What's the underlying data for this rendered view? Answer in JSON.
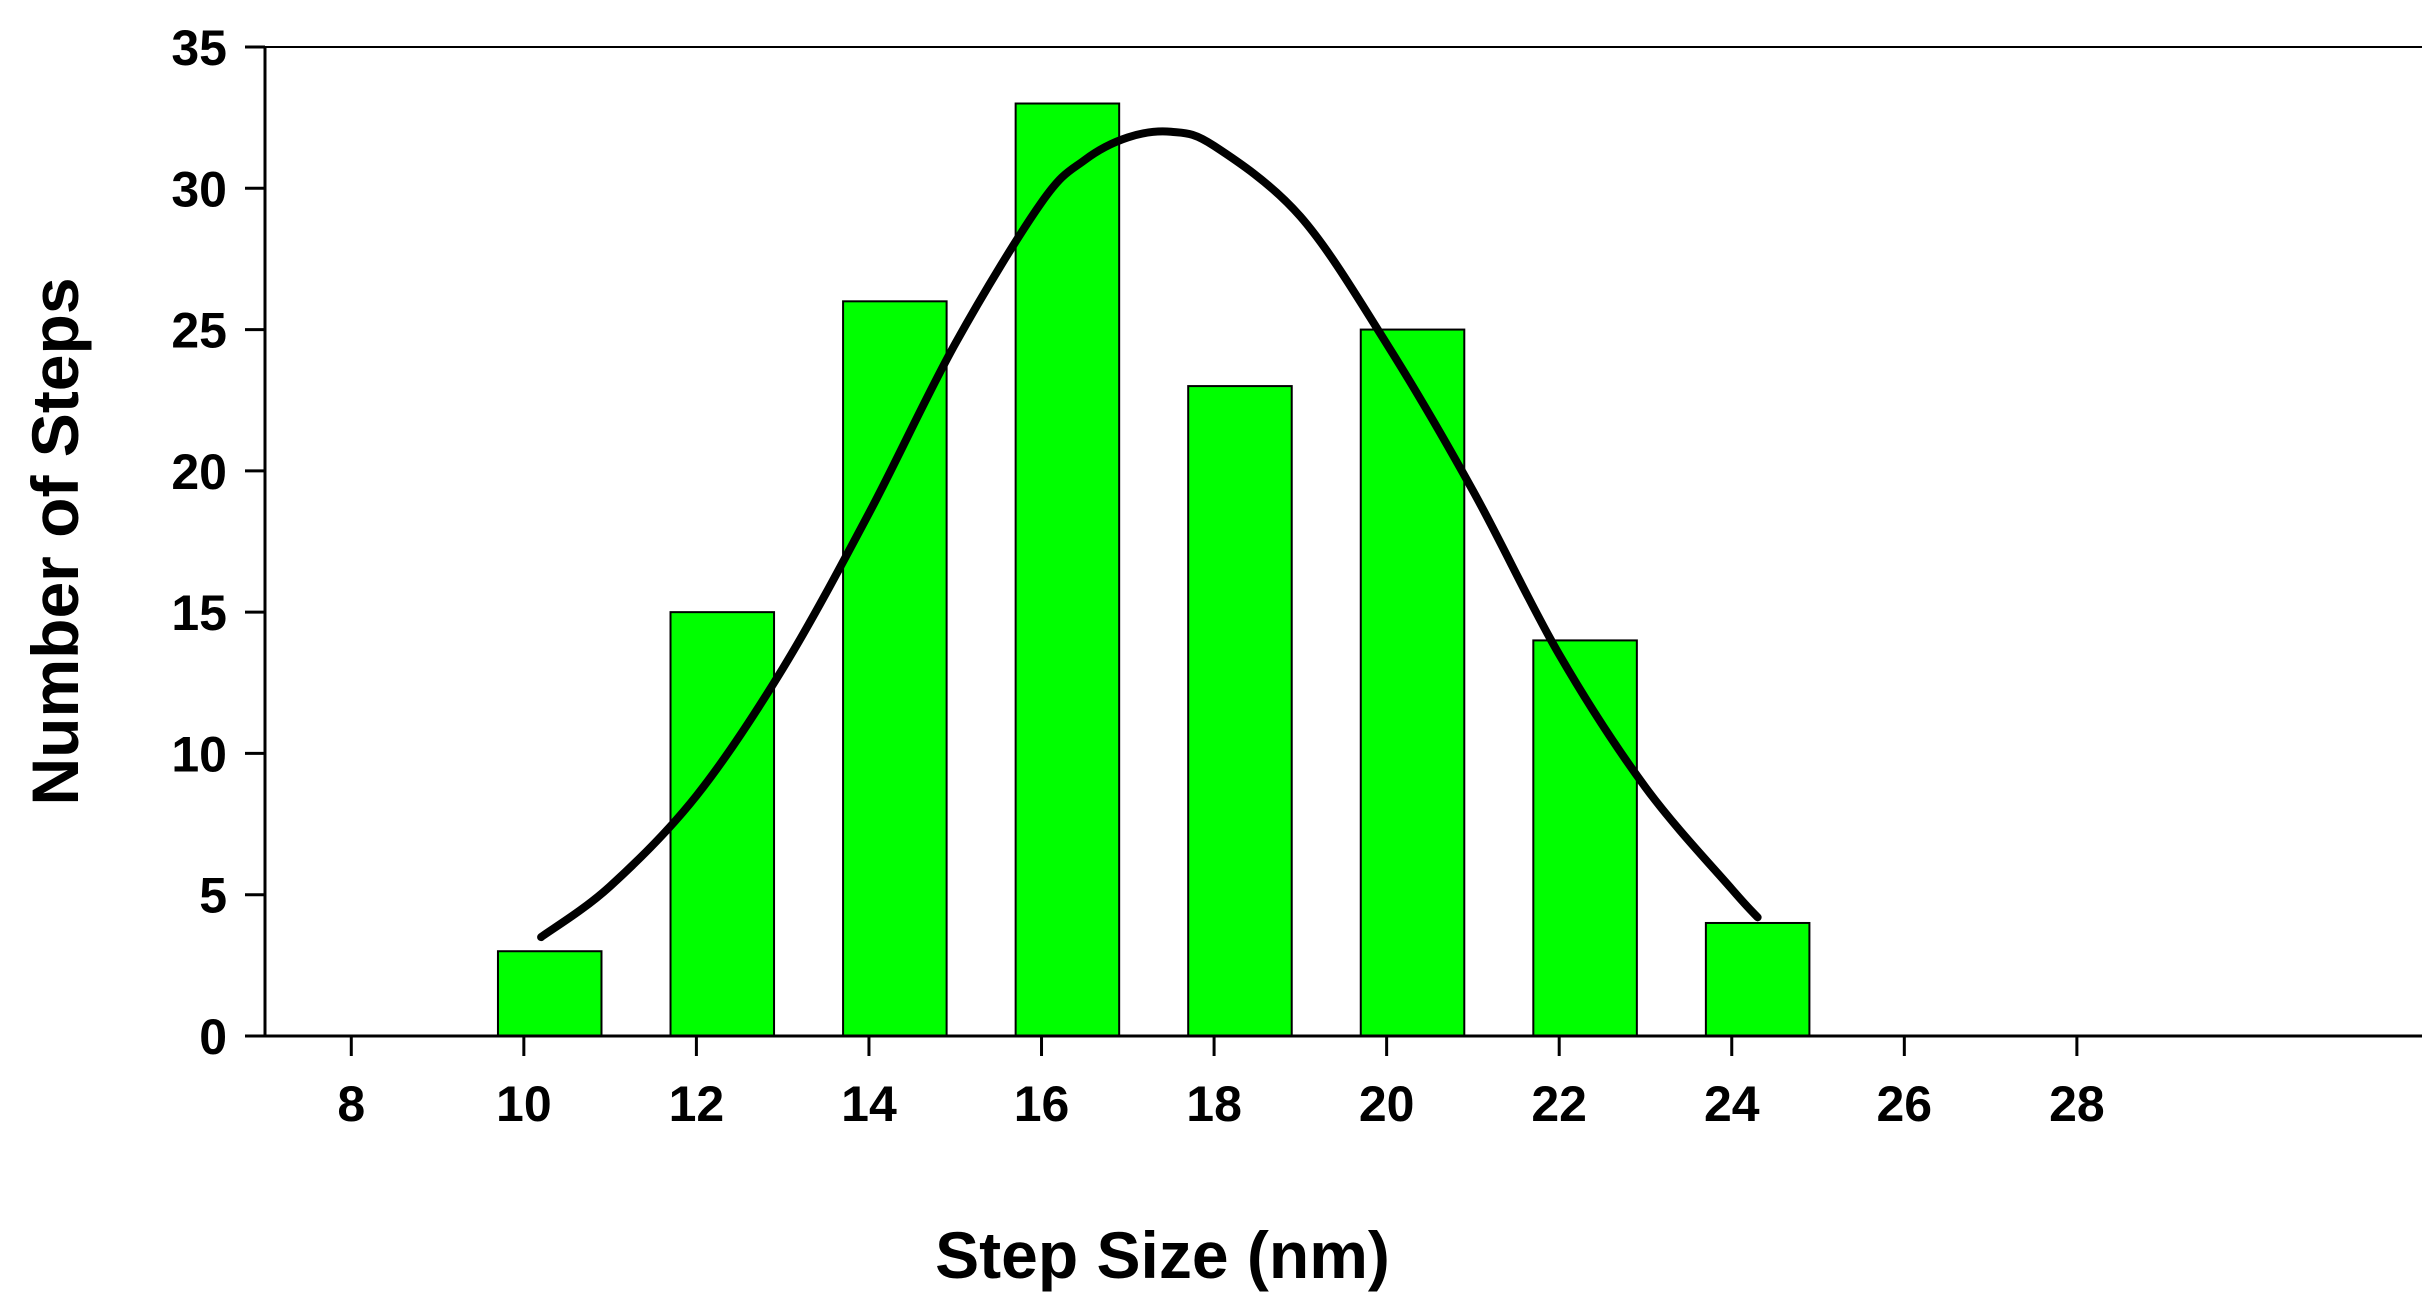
{
  "chart_data": {
    "type": "bar",
    "title": "",
    "xlabel": "Step Size (nm)",
    "ylabel": "Number of Steps",
    "x_ticks": [
      8,
      10,
      12,
      14,
      16,
      18,
      20,
      22,
      24,
      26,
      28
    ],
    "y_ticks": [
      0,
      5,
      10,
      15,
      20,
      25,
      30,
      35
    ],
    "xlim": [
      7,
      32
    ],
    "ylim": [
      0,
      35
    ],
    "grid": false,
    "bar_color": "#00ff00",
    "bar_edge_color": "#000000",
    "bar_width": 1.2,
    "series": [
      {
        "type": "bar",
        "x": [
          10.3,
          12.3,
          14.3,
          16.3,
          18.3,
          20.3,
          22.3,
          24.3
        ],
        "values": [
          3,
          15,
          26,
          33,
          23,
          25,
          14,
          4
        ]
      },
      {
        "type": "line",
        "description_from_plot": "gaussian fit curve",
        "color": "#000000",
        "x": [
          10.2,
          11,
          12,
          13,
          14,
          15,
          16,
          16.5,
          17,
          17.5,
          18,
          19,
          20,
          21,
          22,
          23,
          24,
          24.3
        ],
        "y": [
          3.5,
          5.3,
          8.5,
          13,
          18.5,
          24.5,
          29.5,
          31,
          31.8,
          32,
          31.5,
          29,
          24.5,
          19.3,
          13.5,
          8.8,
          5.2,
          4.2
        ]
      }
    ]
  }
}
